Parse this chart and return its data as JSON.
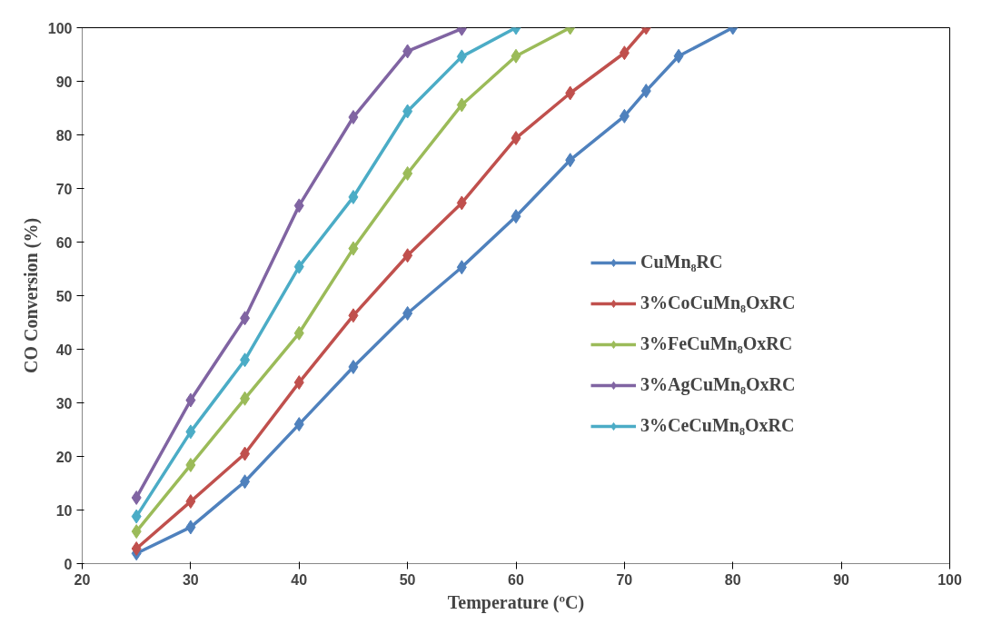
{
  "chart_data": {
    "type": "line",
    "xlabel": "Temperature (ºC)",
    "ylabel": "CO Conversion (%)",
    "xlim": [
      20,
      100
    ],
    "ylim": [
      0,
      100
    ],
    "xticks": [
      20,
      30,
      40,
      50,
      60,
      70,
      80,
      90,
      100
    ],
    "yticks": [
      0,
      10,
      20,
      30,
      40,
      50,
      60,
      70,
      80,
      90,
      100
    ],
    "grid": false,
    "legend": "right",
    "marker": "diamond",
    "line_style": "solid",
    "series": [
      {
        "name": "CuMn₈RC",
        "color": "#4f81bd",
        "x": [
          25,
          30,
          35,
          40,
          45,
          50,
          55,
          60,
          65,
          70,
          72,
          75,
          80
        ],
        "values": [
          1.9,
          6.8,
          15.3,
          26,
          36.7,
          46.7,
          55.3,
          64.8,
          75.3,
          83.5,
          88.2,
          94.7,
          100
        ]
      },
      {
        "name": "3%CoCuMn₈OxRC",
        "color": "#c0504d",
        "x": [
          25,
          30,
          35,
          40,
          45,
          50,
          55,
          60,
          65,
          70,
          72
        ],
        "values": [
          2.8,
          11.6,
          20.5,
          33.8,
          46.3,
          57.5,
          67.3,
          79.4,
          87.8,
          95.3,
          100
        ]
      },
      {
        "name": "3%FeCuMn₈OxRC",
        "color": "#9bbb59",
        "x": [
          25,
          30,
          35,
          40,
          45,
          50,
          55,
          60,
          65
        ],
        "values": [
          6,
          18.4,
          30.8,
          43,
          58.8,
          72.8,
          85.6,
          94.7,
          100
        ]
      },
      {
        "name": "3%AgCuMn₈OxRC",
        "color": "#8064a2",
        "x": [
          25,
          30,
          35,
          40,
          45,
          50,
          55
        ],
        "values": [
          12.3,
          30.5,
          45.8,
          66.8,
          83.3,
          95.6,
          99.8
        ]
      },
      {
        "name": "3%CeCuMn₈OxRC",
        "color": "#4bacc6",
        "x": [
          25,
          30,
          35,
          40,
          45,
          50,
          55,
          60
        ],
        "values": [
          8.8,
          24.6,
          38,
          55.4,
          68.4,
          84.4,
          94.6,
          100
        ]
      }
    ]
  }
}
